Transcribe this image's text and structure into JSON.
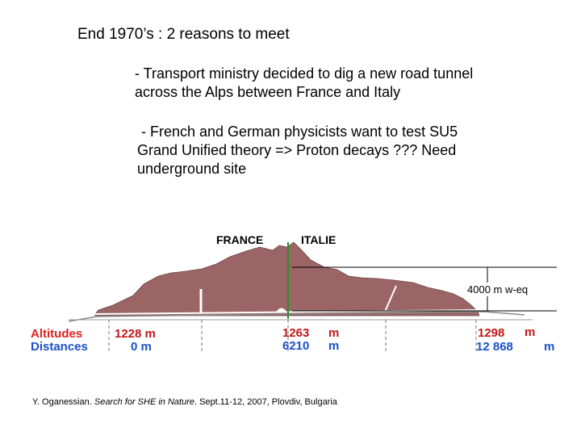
{
  "slide": {
    "title": "End 1970’s :  2 reasons to meet",
    "reason1_line1": "- Transport ministry decided to dig a new road tunnel",
    "reason1_line2": "across the Alps  between France and Italy",
    "reason2_line1": " - French and German physicists want to test SU5",
    "reason2_line2": "Grand Unified theory => Proton decays ???  Need",
    "reason2_line3": "underground site"
  },
  "diagram": {
    "country_left": "FRANCE",
    "country_right": "ITALIE",
    "depth_label": "4000 m w-eq",
    "altitudes_label": "Altitudes",
    "distances_label": "Distances",
    "altitude_left": "1228 m",
    "altitude_mid": "1263",
    "altitude_mid_unit": "m",
    "altitude_right": "1298",
    "altitude_right_unit": "m",
    "distance_left": "0 m",
    "distance_mid": "6210",
    "distance_mid_unit": "m",
    "distance_right": "12 868",
    "distance_right_unit": "m",
    "colors": {
      "mountain": "#9b6566",
      "vertical_line": "#2e8b2e",
      "altitudes_label": "#e02020",
      "distances_label": "#1a50c8",
      "values": "#c01818"
    }
  },
  "footer": {
    "prefix": "Y. Oganessian. ",
    "italic": "Search for SHE in Nature",
    "suffix": ". Sept.11-12, 2007, Plovdiv, Bulgaria"
  }
}
